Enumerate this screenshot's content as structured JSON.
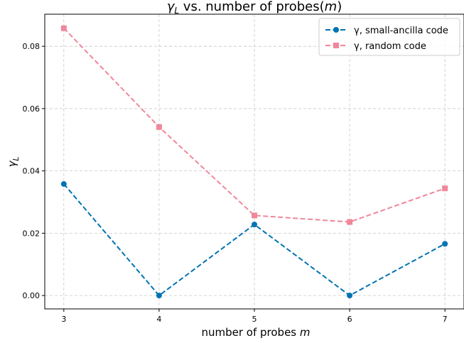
{
  "chart_data": {
    "type": "line",
    "title": "γ_L vs. number of probes(m)",
    "xlabel": "number of probes m",
    "ylabel": "γ_L",
    "x": [
      3,
      4,
      5,
      6,
      7
    ],
    "xticks": [
      "3",
      "4",
      "5",
      "6",
      "7"
    ],
    "yticks": [
      "0.00",
      "0.02",
      "0.04",
      "0.06",
      "0.08"
    ],
    "xlim": [
      2.8,
      7.2
    ],
    "ylim": [
      -0.0043,
      0.0903
    ],
    "grid": true,
    "legend_position": "top-right",
    "series": [
      {
        "name": "γ, small-ancilla code",
        "values": [
          0.0358,
          0.0,
          0.0228,
          0.0,
          0.0166
        ],
        "color": "#0173b2",
        "marker": "circle",
        "linestyle": "dashed"
      },
      {
        "name": "γ, random code",
        "values": [
          0.0858,
          0.0541,
          0.0257,
          0.0236,
          0.0344
        ],
        "color": "#f0879a",
        "marker": "square",
        "linestyle": "dashed"
      }
    ]
  }
}
